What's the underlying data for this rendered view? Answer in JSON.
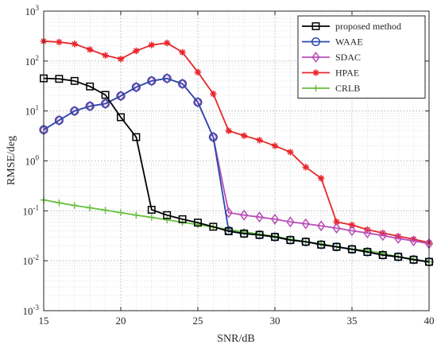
{
  "chart_data": {
    "type": "line",
    "title": "",
    "xlabel": "SNR/dB",
    "ylabel": "RMSE/deg",
    "xlim": [
      15,
      40
    ],
    "ylim": [
      0.001,
      1000
    ],
    "yscale": "log",
    "grid": true,
    "legend_position": "top-right",
    "x_ticks": [
      "15",
      "20",
      "25",
      "30",
      "35",
      "40"
    ],
    "y_ticks": [
      {
        "base": "10",
        "exp": "-3"
      },
      {
        "base": "10",
        "exp": "-2"
      },
      {
        "base": "10",
        "exp": "-1"
      },
      {
        "base": "10",
        "exp": "0"
      },
      {
        "base": "10",
        "exp": "1"
      },
      {
        "base": "10",
        "exp": "2"
      },
      {
        "base": "10",
        "exp": "3"
      }
    ],
    "x": [
      15,
      16,
      17,
      18,
      19,
      20,
      21,
      22,
      23,
      24,
      25,
      26,
      27,
      28,
      29,
      30,
      31,
      32,
      33,
      34,
      35,
      36,
      37,
      38,
      39,
      40
    ],
    "series": [
      {
        "name": "proposed method",
        "color": "#000000",
        "marker": "square",
        "values": [
          45,
          44,
          40,
          31,
          21,
          7.5,
          3.0,
          0.105,
          0.082,
          0.068,
          0.058,
          0.048,
          0.039,
          0.035,
          0.033,
          0.03,
          0.026,
          0.024,
          0.021,
          0.019,
          0.017,
          0.015,
          0.013,
          0.012,
          0.0105,
          0.0095
        ]
      },
      {
        "name": "WAAE",
        "color": "#2a4aa8",
        "marker": "circle",
        "values": [
          4.2,
          6.5,
          10,
          12.5,
          14,
          20,
          30,
          40,
          45,
          35,
          15,
          3.0,
          0.04,
          0.035,
          0.033,
          0.03,
          0.026,
          0.024,
          0.021,
          0.019,
          0.017,
          0.015,
          0.013,
          0.012,
          0.0105,
          0.0095
        ]
      },
      {
        "name": "SDAC",
        "color": "#b84fb8",
        "marker": "diamond",
        "values": [
          4.2,
          6.5,
          10,
          12.5,
          14,
          20,
          30,
          40,
          45,
          35,
          15,
          3.0,
          0.092,
          0.082,
          0.075,
          0.068,
          0.06,
          0.055,
          0.05,
          0.045,
          0.04,
          0.036,
          0.032,
          0.028,
          0.025,
          0.022
        ]
      },
      {
        "name": "HPAE",
        "color": "#e8252a",
        "marker": "asterisk",
        "values": [
          250,
          240,
          220,
          170,
          130,
          110,
          160,
          210,
          230,
          150,
          60,
          22,
          4.0,
          3.2,
          2.6,
          2.0,
          1.5,
          0.75,
          0.45,
          0.06,
          0.052,
          0.042,
          0.036,
          0.031,
          0.027,
          0.023
        ]
      },
      {
        "name": "CRLB",
        "color": "#6abf3f",
        "marker": "plus",
        "values": [
          0.165,
          0.145,
          0.128,
          0.115,
          0.103,
          0.092,
          0.082,
          0.074,
          0.066,
          0.059,
          0.053,
          0.047,
          0.042,
          0.038,
          0.034,
          0.031,
          0.027,
          0.024,
          0.022,
          0.019,
          0.017,
          0.016,
          0.014,
          0.012,
          0.0108,
          0.0095
        ]
      }
    ]
  }
}
